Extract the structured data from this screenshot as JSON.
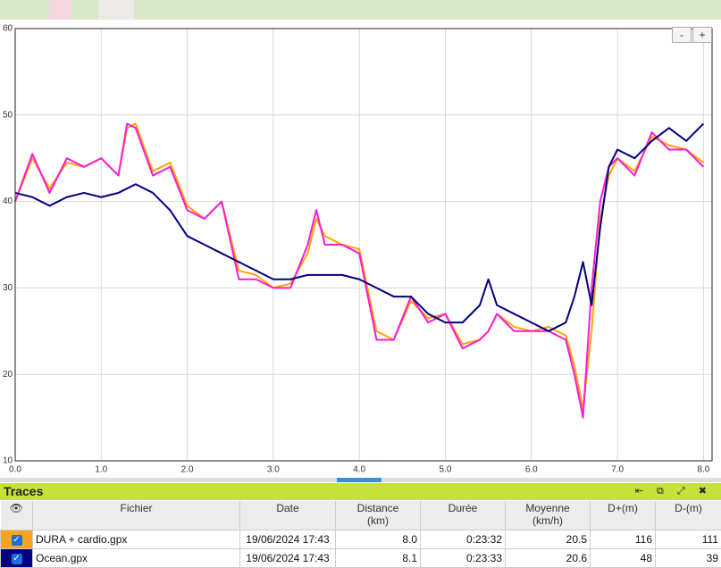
{
  "chart_data": {
    "type": "line",
    "x": [
      0,
      0.2,
      0.4,
      0.6,
      0.8,
      1.0,
      1.2,
      1.3,
      1.4,
      1.6,
      1.8,
      2.0,
      2.2,
      2.4,
      2.6,
      2.8,
      3.0,
      3.2,
      3.4,
      3.5,
      3.6,
      3.8,
      4.0,
      4.2,
      4.4,
      4.6,
      4.8,
      5.0,
      5.2,
      5.4,
      5.5,
      5.6,
      5.8,
      6.0,
      6.2,
      6.4,
      6.5,
      6.6,
      6.7,
      6.8,
      6.9,
      7.0,
      7.2,
      7.4,
      7.6,
      7.8,
      8.0
    ],
    "series": [
      {
        "color": "#ffa500",
        "values": [
          40,
          45,
          41.5,
          44.5,
          44,
          45,
          43,
          48.5,
          49,
          43.5,
          44.5,
          39.5,
          38,
          40,
          32,
          31.5,
          30,
          30.5,
          34,
          38,
          36,
          35,
          34.5,
          25,
          24,
          28.5,
          26.5,
          27,
          23.5,
          24,
          25,
          27,
          25.5,
          25,
          25.5,
          24.5,
          21,
          16,
          25,
          38,
          43,
          45,
          43.5,
          47.5,
          46.5,
          46,
          44.5
        ]
      },
      {
        "color": "#ff19d9",
        "values": [
          40,
          45.5,
          41,
          45,
          44,
          45,
          43,
          49,
          48.5,
          43,
          44,
          39,
          38,
          40,
          31,
          31,
          30,
          30,
          35,
          39,
          35,
          35,
          34,
          24,
          24,
          29,
          26,
          27,
          23,
          24,
          25,
          27,
          25,
          25,
          25,
          24,
          20,
          15,
          30,
          40,
          44,
          45,
          43,
          48,
          46,
          46,
          44
        ]
      },
      {
        "color": "#000080",
        "values": [
          41,
          40.5,
          39.5,
          40.5,
          41,
          40.5,
          41,
          41.5,
          42,
          41,
          39,
          36,
          35,
          34,
          33,
          32,
          31,
          31,
          31.5,
          31.5,
          31.5,
          31.5,
          31,
          30,
          29,
          29,
          27,
          26,
          26,
          28,
          31,
          28,
          27,
          26,
          25,
          26,
          29,
          33,
          28,
          37,
          44,
          46,
          45,
          47,
          48.5,
          47,
          49
        ]
      }
    ],
    "xlim": [
      0,
      8.1
    ],
    "ylim": [
      10,
      60
    ],
    "xticks": [
      {
        "value": 0,
        "label": "0.0"
      },
      {
        "value": 1,
        "label": "1.0"
      },
      {
        "value": 2,
        "label": "2.0"
      },
      {
        "value": 3,
        "label": "3.0"
      },
      {
        "value": 4,
        "label": "4.0"
      },
      {
        "value": 5,
        "label": "5.0"
      },
      {
        "value": 6,
        "label": "6.0"
      },
      {
        "value": 7,
        "label": "7.0"
      },
      {
        "value": 8,
        "label": "8.0"
      }
    ],
    "yticks": [
      10,
      20,
      30,
      40,
      50,
      60
    ],
    "grid": true
  },
  "controls": {
    "zoom_out": "-",
    "zoom_in": "+"
  },
  "panel": {
    "title": "Traces"
  },
  "table": {
    "columns": [
      "Fichier",
      "Date",
      "Distance\n(km)",
      "Durée",
      "Moyenne\n(km/h)",
      "D+(m)",
      "D-(m)"
    ],
    "rows": [
      [
        "DURA + cardio.gpx",
        "19/06/2024 17:43",
        "8.0",
        "0:23:32",
        "20.5",
        "116",
        "111"
      ],
      [
        "Ocean.gpx",
        "19/06/2024 17:43",
        "8.1",
        "0:23:33",
        "20.6",
        "48",
        "39"
      ]
    ],
    "row_colors": [
      "#f7a521",
      "#000080"
    ]
  }
}
